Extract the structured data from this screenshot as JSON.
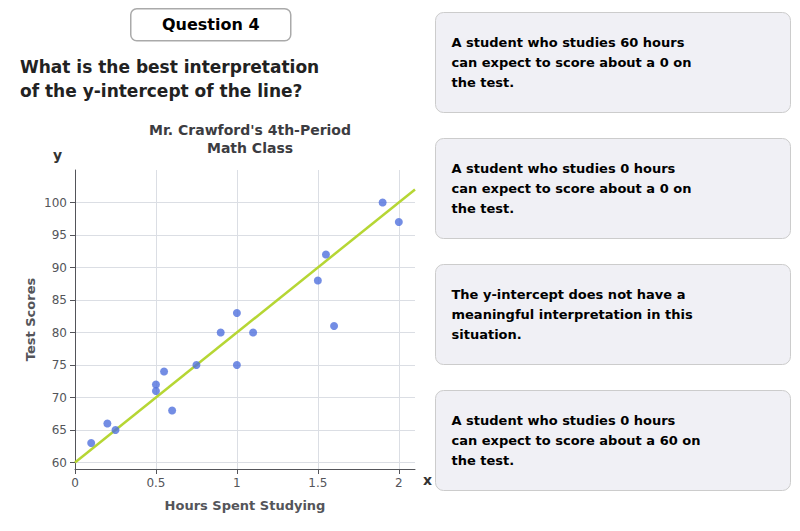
{
  "chart_data": {
    "type": "scatter",
    "title": "Mr. Crawford's 4th-Period\nMath Class",
    "xlabel": "Hours Spent Studying",
    "ylabel": "Test Scores",
    "xlim": [
      0,
      2.1
    ],
    "ylim": [
      59,
      105
    ],
    "xticks": [
      0,
      0.5,
      1.0,
      1.5,
      2.0
    ],
    "yticks": [
      60,
      65,
      70,
      75,
      80,
      85,
      90,
      95,
      100
    ],
    "grid": true,
    "series": [
      {
        "type": "scatter",
        "x": [
          0.1,
          0.2,
          0.25,
          0.5,
          0.5,
          0.55,
          0.6,
          0.75,
          0.9,
          1.0,
          1.0,
          1.1,
          1.5,
          1.55,
          1.6,
          1.9,
          2.0
        ],
        "values": [
          63,
          66,
          65,
          72,
          71,
          74,
          68,
          75,
          80,
          83,
          75,
          80,
          88,
          92,
          81,
          100,
          97
        ]
      },
      {
        "type": "line",
        "x": [
          0,
          2.1
        ],
        "values": [
          60,
          102
        ]
      }
    ],
    "annotations": [
      "Question 4",
      "What is the best interpretation\nof the y-intercept of the line?",
      "A student who studies 60 hours\ncan expect to score about a 0 on\nthe test.",
      "A student who studies 0 hours\ncan expect to score about a 0 on\nthe test.",
      "The y-intercept does not have a\nmeaningful interpretation in this\nsituation.",
      "A student who studies 0 hours\ncan expect to score about a 60 on\nthe test.",
      "y",
      "x"
    ]
  }
}
